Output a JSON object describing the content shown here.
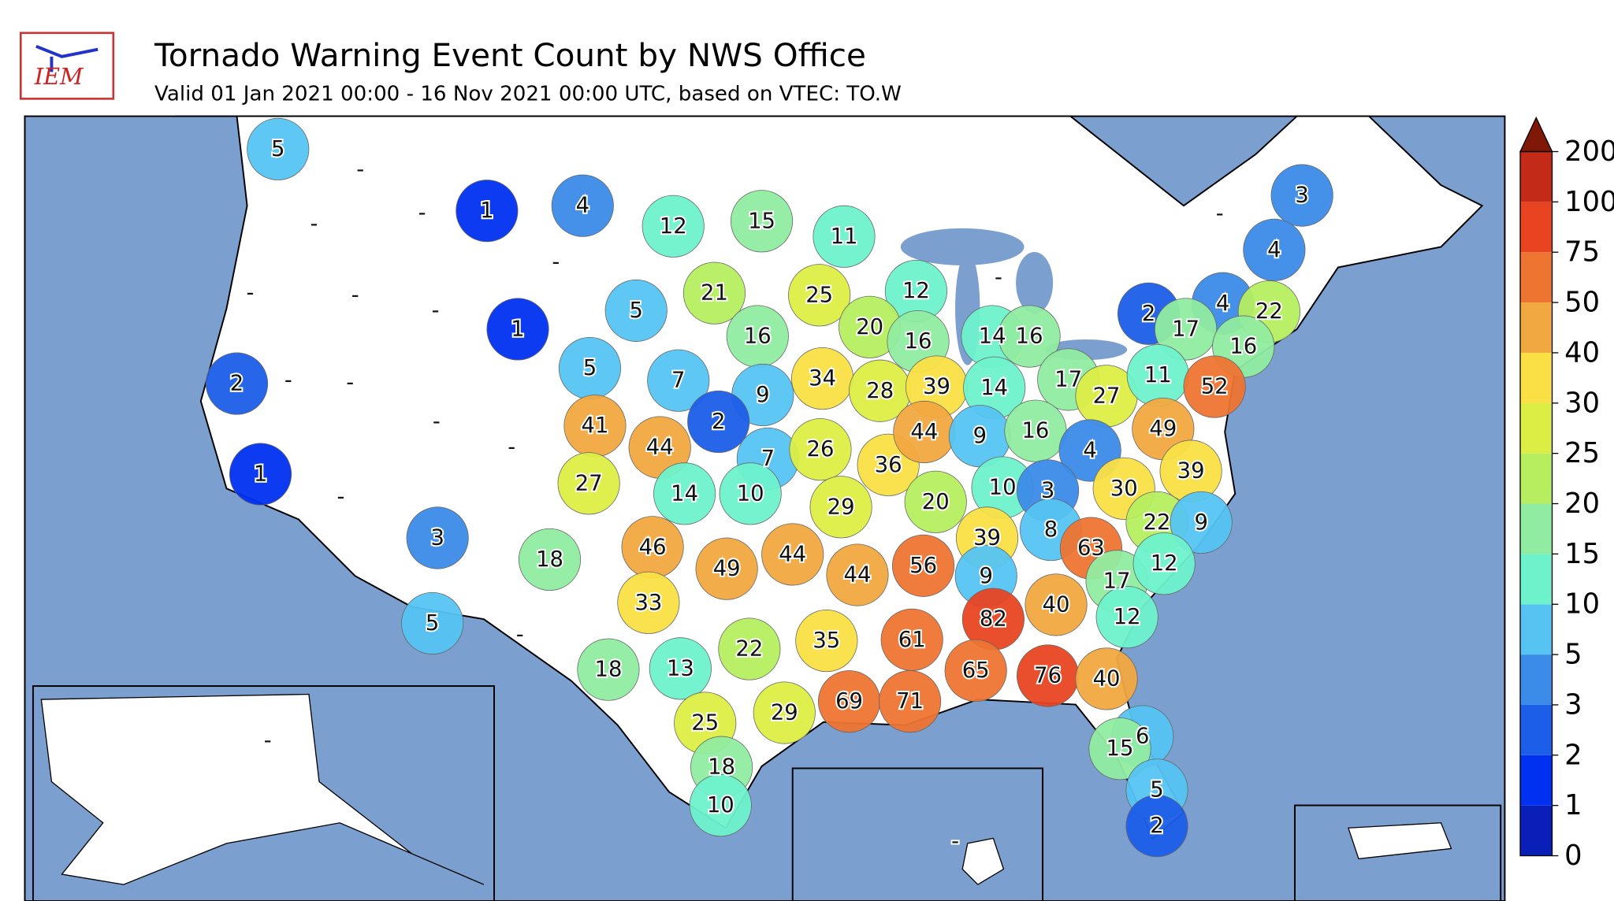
{
  "header": {
    "logo": "IEM",
    "title": "Tornado Warning Event Count by NWS Office",
    "subtitle": "Valid 01 Jan 2021 00:00 - 16 Nov 2021 00:00 UTC, based on VTEC: TO.W"
  },
  "colorbar": {
    "ticks": [
      0,
      1,
      2,
      3,
      5,
      10,
      15,
      20,
      25,
      30,
      40,
      50,
      75,
      100,
      200
    ],
    "colors": [
      "#0a1fb8",
      "#0030f0",
      "#1c5ee8",
      "#3b8be8",
      "#55c4f2",
      "#6ef2cc",
      "#90eca0",
      "#b6ee60",
      "#dcee44",
      "#fae044",
      "#f2a840",
      "#ee7432",
      "#e84422",
      "#c42a18"
    ],
    "over_color": "#801808"
  },
  "offices": {
    "values": [
      5,
      1,
      4,
      12,
      15,
      11,
      3,
      4,
      2,
      1,
      5,
      21,
      25,
      12,
      2,
      4,
      22,
      17,
      16,
      5,
      16,
      20,
      16,
      14,
      16,
      1,
      7,
      9,
      34,
      28,
      39,
      14,
      17,
      27,
      11,
      52,
      41,
      44,
      2,
      7,
      26,
      36,
      44,
      9,
      16,
      4,
      49,
      39,
      27,
      14,
      10,
      29,
      20,
      10,
      3,
      30,
      3,
      18,
      46,
      49,
      44,
      44,
      56,
      39,
      8,
      63,
      22,
      9,
      9,
      17,
      12,
      33,
      5,
      35,
      61,
      82,
      40,
      12,
      18,
      13,
      22,
      65,
      76,
      40,
      69,
      71,
      25,
      29,
      6,
      15,
      18,
      5,
      10,
      2
    ],
    "no_data_label": "-"
  }
}
